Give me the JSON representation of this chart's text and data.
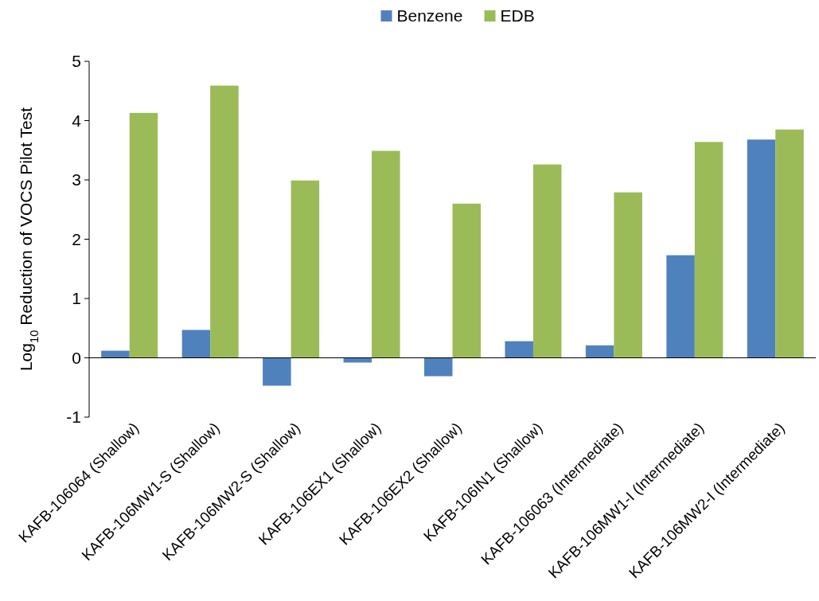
{
  "chart_data": {
    "type": "bar",
    "ylabel": "Log$_{10}$ Reduction of VOCS Pilot Test",
    "categories": [
      "KAFB-106064 (Shallow)",
      "KAFB-106MW1-S (Shallow)",
      "KAFB-106MW2-S (Shallow)",
      "KAFB-106EX1 (Shallow)",
      "KAFB-106EX2 (Shallow)",
      "KAFB-106IN1 (Shallow)",
      "KAFB-106063 (Intermediate)",
      "KAFB-106MW1-I (Intermediate)",
      "KAFB-106MW2-I (Intermediate)"
    ],
    "series": [
      {
        "name": "Benzene",
        "color": "#4f81bd",
        "values": [
          0.12,
          0.47,
          -0.47,
          -0.08,
          -0.31,
          0.28,
          0.21,
          1.73,
          3.68
        ]
      },
      {
        "name": "EDB",
        "color": "#9bbb59",
        "values": [
          4.13,
          4.59,
          2.99,
          3.49,
          2.6,
          3.26,
          2.79,
          3.64,
          3.85
        ]
      }
    ],
    "ylim": [
      -1,
      5
    ],
    "yticks": [
      -1,
      0,
      1,
      2,
      3,
      4,
      5
    ],
    "legend": "top"
  }
}
